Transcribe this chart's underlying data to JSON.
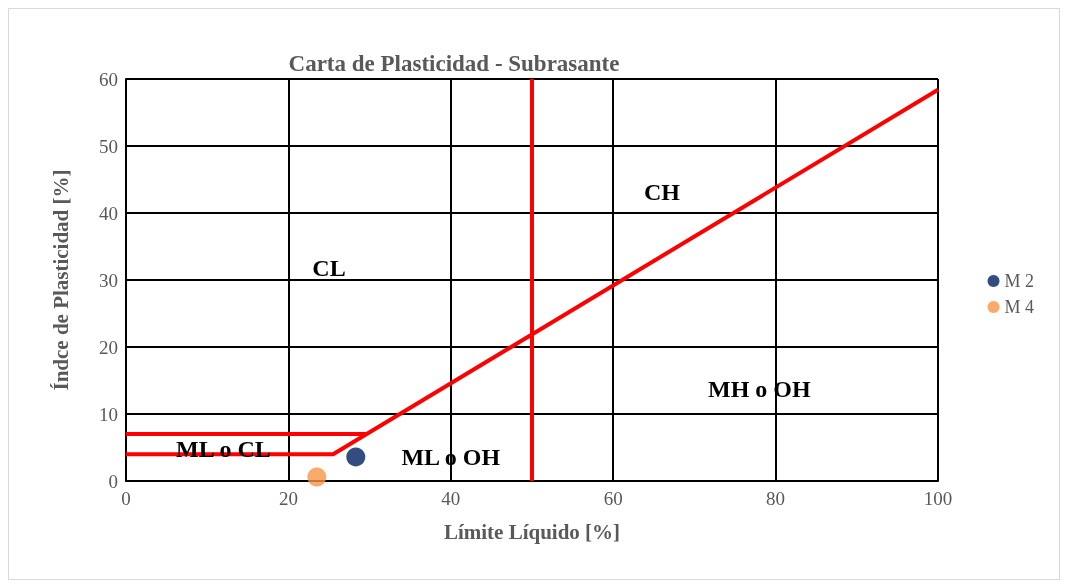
{
  "chart_data": {
    "type": "scatter",
    "title": "Carta de Plasticidad - Subrasante",
    "xlabel": "Límite Líquido [%]",
    "ylabel": "Índce de Plasticidad [%]",
    "xlim": [
      0,
      100
    ],
    "xticks": [
      0,
      20,
      40,
      60,
      80,
      100
    ],
    "ylim": [
      0,
      60
    ],
    "yticks": [
      0,
      10,
      20,
      30,
      40,
      50,
      60
    ],
    "grid": true,
    "legend": "right",
    "series": [
      {
        "name": "M 2",
        "color": "#002060",
        "marker": "circle",
        "x": [
          28.3
        ],
        "values": [
          3.6
        ]
      },
      {
        "name": "M 4",
        "color": "#f79646",
        "marker": "circle",
        "x": [
          23.5
        ],
        "values": [
          0.6
        ]
      },
      {
        "type": "line",
        "color": "#ff0000",
        "marker": "none",
        "x": [
          0,
          25.5,
          100
        ],
        "values": [
          4,
          4,
          58.4
        ]
      },
      {
        "type": "line",
        "color": "#ff0000",
        "marker": "none",
        "x": [
          0,
          29.6
        ],
        "values": [
          7,
          7
        ]
      }
    ],
    "ref_lines": [
      {
        "axis": "x",
        "value": 50,
        "color": "#ff0000"
      }
    ],
    "annotations": [
      "CL",
      "CH",
      "MH o OH",
      "ML o OH",
      "ML o CL"
    ]
  }
}
